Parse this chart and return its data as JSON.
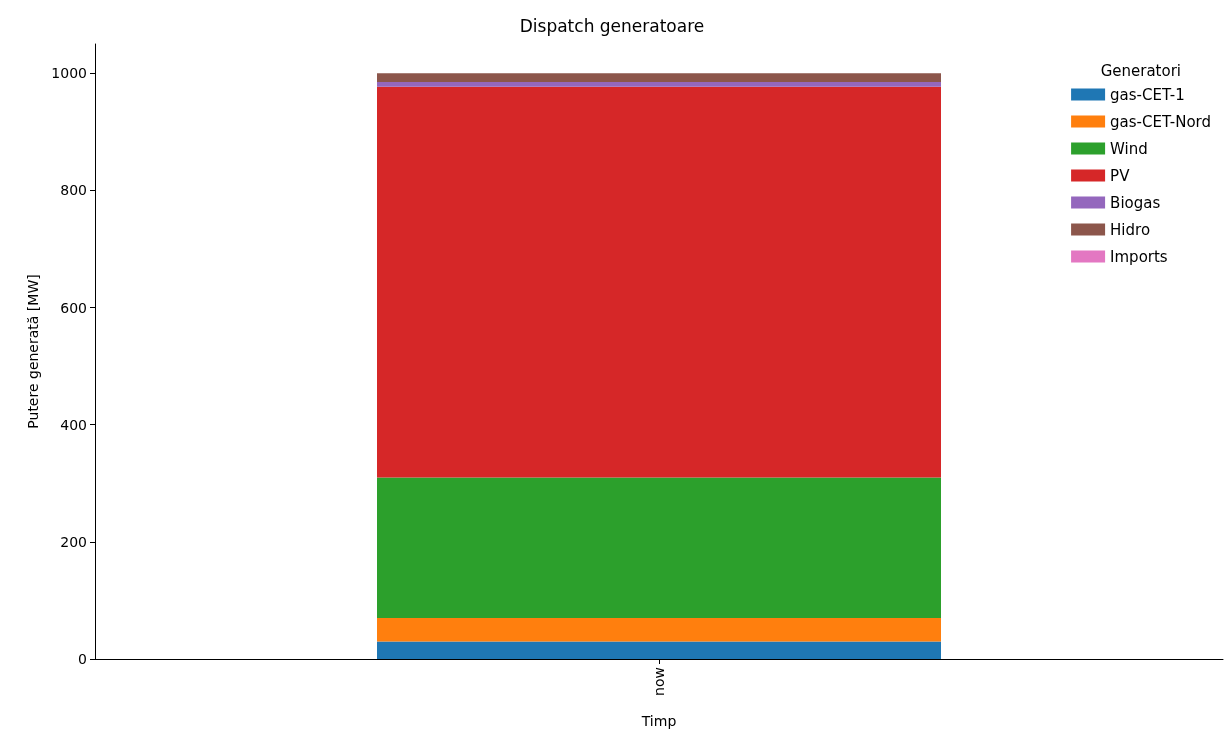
{
  "chart_data": {
    "type": "bar",
    "title": "Dispatch generatoare",
    "xlabel": "Timp",
    "ylabel": "Putere generată [MW]",
    "legend_title": "Generatori",
    "categories": [
      "now"
    ],
    "stacked": true,
    "legend": "top right",
    "grid": false,
    "ylim": [
      0,
      1050
    ],
    "yticks": [
      0,
      200,
      400,
      600,
      800,
      1000
    ],
    "series": [
      {
        "name": "gas-CET-1",
        "color": "#1f77b4",
        "values": [
          30
        ]
      },
      {
        "name": "gas-CET-Nord",
        "color": "#ff7f0e",
        "values": [
          40
        ]
      },
      {
        "name": "Wind",
        "color": "#2ca02c",
        "values": [
          240
        ]
      },
      {
        "name": "PV",
        "color": "#d62728",
        "values": [
          667
        ]
      },
      {
        "name": "Biogas",
        "color": "#9467bd",
        "values": [
          8
        ]
      },
      {
        "name": "Hidro",
        "color": "#8c564b",
        "values": [
          15
        ]
      },
      {
        "name": "Imports",
        "color": "#e377c2",
        "values": [
          0
        ]
      }
    ]
  }
}
